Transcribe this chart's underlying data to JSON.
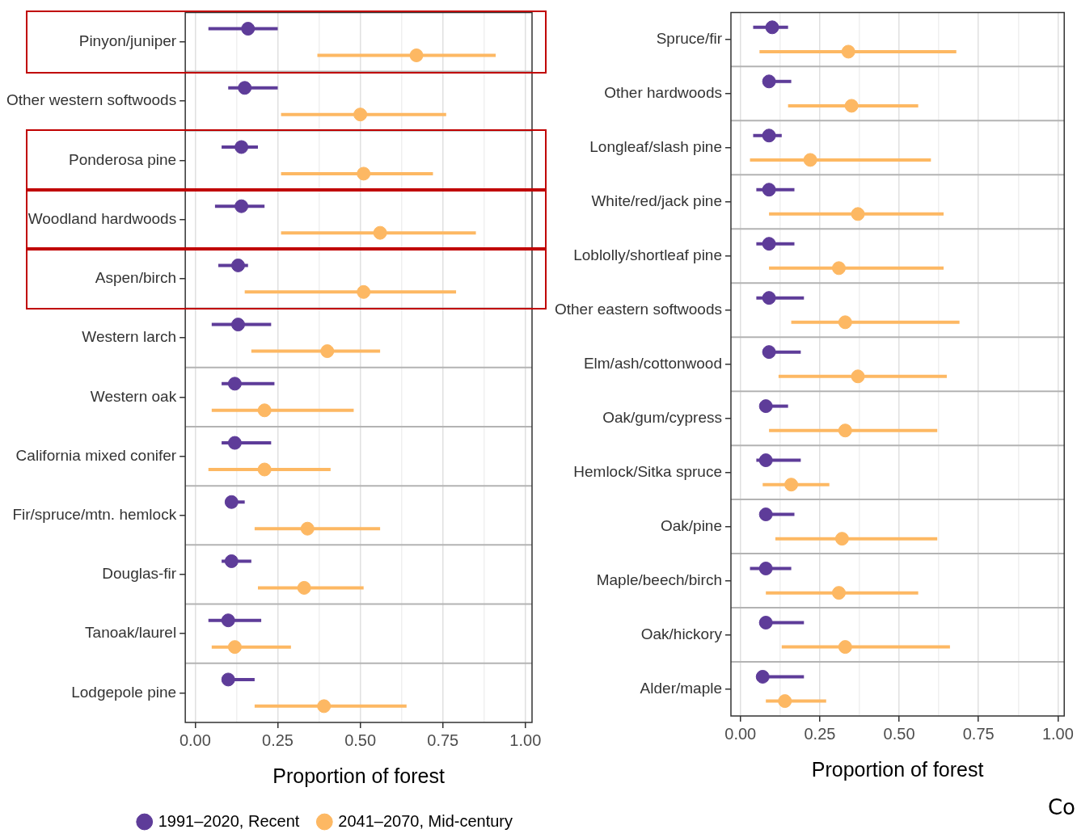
{
  "chart_data": [
    {
      "type": "scatter",
      "orientation": "horizontal",
      "xlabel": "Proportion of forest",
      "xlim": [
        -0.03,
        1.02
      ],
      "xticks": [
        {
          "value": 0,
          "label": "0.00"
        },
        {
          "value": 0.125,
          "label": null
        },
        {
          "value": 0.25,
          "label": "0.25"
        },
        {
          "value": 0.375,
          "label": null
        },
        {
          "value": 0.5,
          "label": "0.50"
        },
        {
          "value": 0.625,
          "label": null
        },
        {
          "value": 0.75,
          "label": "0.75"
        },
        {
          "value": 0.875,
          "label": null
        },
        {
          "value": 1,
          "label": "1.00"
        }
      ],
      "categories": [
        "Pinyon/juniper",
        "Other western softwoods",
        "Ponderosa pine",
        "Woodland hardwoods",
        "Aspen/birch",
        "Western larch",
        "Western oak",
        "California mixed conifer",
        "Fir/spruce/mtn. hemlock",
        "Douglas-fir",
        "Tanoak/laurel",
        "Lodgepole pine"
      ],
      "series": [
        {
          "name": "1991–2020, Recent",
          "color": "#5e3c99",
          "values": [
            0.16,
            0.15,
            0.14,
            0.14,
            0.13,
            0.13,
            0.12,
            0.12,
            0.11,
            0.11,
            0.1,
            0.1
          ],
          "errors": [
            [
              0.04,
              0.25
            ],
            [
              0.1,
              0.25
            ],
            [
              0.08,
              0.19
            ],
            [
              0.06,
              0.21
            ],
            [
              0.07,
              0.16
            ],
            [
              0.05,
              0.23
            ],
            [
              0.08,
              0.24
            ],
            [
              0.08,
              0.23
            ],
            [
              0.1,
              0.15
            ],
            [
              0.08,
              0.17
            ],
            [
              0.04,
              0.2
            ],
            [
              0.1,
              0.18
            ]
          ]
        },
        {
          "name": "2041–2070, Mid-century",
          "color": "#fdb863",
          "values": [
            0.67,
            0.5,
            0.51,
            0.56,
            0.51,
            0.4,
            0.21,
            0.21,
            0.34,
            0.33,
            0.12,
            0.39
          ],
          "errors": [
            [
              0.37,
              0.91
            ],
            [
              0.26,
              0.76
            ],
            [
              0.26,
              0.72
            ],
            [
              0.26,
              0.85
            ],
            [
              0.15,
              0.79
            ],
            [
              0.17,
              0.56
            ],
            [
              0.05,
              0.48
            ],
            [
              0.04,
              0.41
            ],
            [
              0.18,
              0.56
            ],
            [
              0.19,
              0.51
            ],
            [
              0.05,
              0.29
            ],
            [
              0.18,
              0.64
            ]
          ]
        }
      ],
      "grid": true,
      "legend": "bottom",
      "marker": "circle"
    },
    {
      "type": "scatter",
      "orientation": "horizontal",
      "xlabel": "Proportion of forest",
      "xlim": [
        -0.03,
        1.02
      ],
      "xticks": [
        {
          "value": 0,
          "label": "0.00"
        },
        {
          "value": 0.125,
          "label": null
        },
        {
          "value": 0.25,
          "label": "0.25"
        },
        {
          "value": 0.375,
          "label": null
        },
        {
          "value": 0.5,
          "label": "0.50"
        },
        {
          "value": 0.625,
          "label": null
        },
        {
          "value": 0.75,
          "label": "0.75"
        },
        {
          "value": 0.875,
          "label": null
        },
        {
          "value": 1,
          "label": "1.00"
        }
      ],
      "categories": [
        "Spruce/fir",
        "Other hardwoods",
        "Longleaf/slash pine",
        "White/red/jack pine",
        "Loblolly/shortleaf pine",
        "Other eastern softwoods",
        "Elm/ash/cottonwood",
        "Oak/gum/cypress",
        "Hemlock/Sitka spruce",
        "Oak/pine",
        "Maple/beech/birch",
        "Oak/hickory",
        "Alder/maple"
      ],
      "series": [
        {
          "color": "#5e3c99",
          "values": [
            0.1,
            0.09,
            0.09,
            0.09,
            0.09,
            0.09,
            0.09,
            0.08,
            0.08,
            0.08,
            0.08,
            0.08,
            0.07
          ],
          "errors": [
            [
              0.04,
              0.15
            ],
            [
              0.09,
              0.16
            ],
            [
              0.04,
              0.13
            ],
            [
              0.05,
              0.17
            ],
            [
              0.05,
              0.17
            ],
            [
              0.05,
              0.2
            ],
            [
              0.07,
              0.19
            ],
            [
              0.08,
              0.15
            ],
            [
              0.05,
              0.19
            ],
            [
              0.08,
              0.17
            ],
            [
              0.03,
              0.16
            ],
            [
              0.06,
              0.2
            ],
            [
              0.05,
              0.2
            ]
          ]
        },
        {
          "color": "#fdb863",
          "values": [
            0.34,
            0.35,
            0.22,
            0.37,
            0.31,
            0.33,
            0.37,
            0.33,
            0.16,
            0.32,
            0.31,
            0.33,
            0.14
          ],
          "errors": [
            [
              0.06,
              0.68
            ],
            [
              0.15,
              0.56
            ],
            [
              0.03,
              0.6
            ],
            [
              0.09,
              0.64
            ],
            [
              0.09,
              0.64
            ],
            [
              0.16,
              0.69
            ],
            [
              0.12,
              0.65
            ],
            [
              0.09,
              0.62
            ],
            [
              0.07,
              0.28
            ],
            [
              0.11,
              0.62
            ],
            [
              0.08,
              0.56
            ],
            [
              0.13,
              0.66
            ],
            [
              0.08,
              0.27
            ]
          ]
        }
      ],
      "annotations": [
        "Co"
      ],
      "grid": true,
      "marker": "circle"
    }
  ]
}
